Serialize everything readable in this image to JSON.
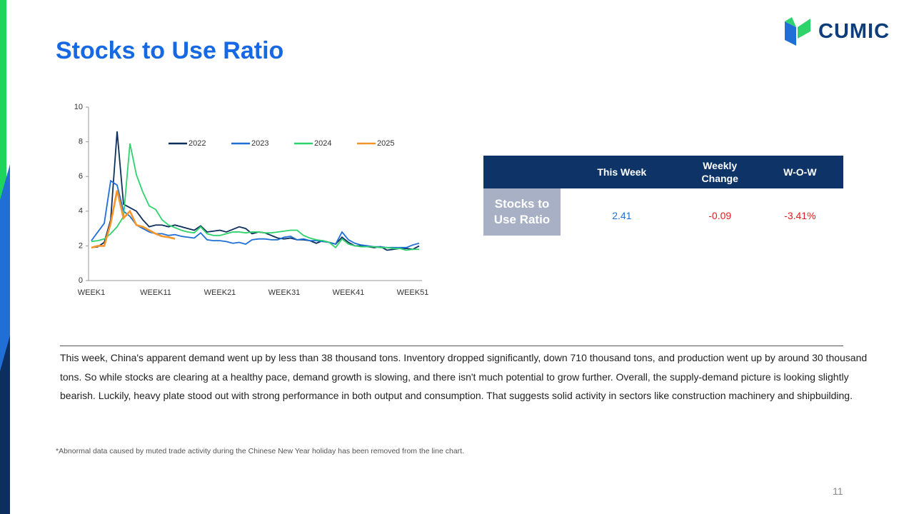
{
  "title": "Stocks to Use Ratio",
  "logo": "CUMIC",
  "chart_data": {
    "type": "line",
    "categories": [
      "WEEK1",
      null,
      null,
      null,
      null,
      null,
      null,
      null,
      null,
      null,
      "WEEK11",
      null,
      null,
      null,
      null,
      null,
      null,
      null,
      null,
      null,
      "WEEK21",
      null,
      null,
      null,
      null,
      null,
      null,
      null,
      null,
      null,
      "WEEK31",
      null,
      null,
      null,
      null,
      null,
      null,
      null,
      null,
      null,
      "WEEK41",
      null,
      null,
      null,
      null,
      null,
      null,
      null,
      null,
      null,
      "WEEK51",
      null
    ],
    "ylim": [
      0,
      10
    ],
    "yticks": [
      0,
      2,
      4,
      6,
      8,
      10
    ],
    "series": [
      {
        "name": "2022",
        "color": "#0d2f5e",
        "values": [
          1.9,
          1.95,
          2.2,
          3.5,
          8.6,
          4.4,
          4.2,
          4.0,
          3.5,
          3.1,
          3.2,
          3.2,
          3.1,
          3.2,
          3.1,
          3.0,
          2.9,
          3.15,
          2.8,
          2.85,
          2.9,
          2.8,
          2.95,
          3.1,
          3.0,
          2.7,
          2.8,
          2.75,
          2.6,
          2.45,
          2.4,
          2.45,
          2.35,
          2.35,
          2.3,
          2.15,
          2.3,
          2.2,
          2.1,
          2.5,
          2.2,
          2.0,
          2.0,
          1.95,
          1.9,
          1.95,
          1.75,
          1.8,
          1.85,
          1.85,
          1.8,
          2.0
        ]
      },
      {
        "name": "2023",
        "color": "#1f6fd6",
        "values": [
          2.3,
          2.8,
          3.3,
          5.75,
          5.5,
          4.0,
          3.7,
          3.2,
          3.0,
          2.8,
          2.7,
          2.7,
          2.6,
          2.65,
          2.55,
          2.5,
          2.45,
          2.75,
          2.35,
          2.3,
          2.3,
          2.25,
          2.15,
          2.2,
          2.1,
          2.35,
          2.4,
          2.4,
          2.35,
          2.35,
          2.5,
          2.55,
          2.35,
          2.4,
          2.3,
          2.3,
          2.25,
          2.2,
          2.1,
          2.8,
          2.35,
          2.15,
          2.05,
          2.0,
          1.95,
          1.95,
          1.9,
          1.9,
          1.9,
          1.9,
          2.05,
          2.15
        ]
      },
      {
        "name": "2024",
        "color": "#2ed36b",
        "values": [
          2.25,
          2.3,
          2.4,
          2.7,
          3.1,
          3.7,
          7.9,
          6.1,
          5.1,
          4.3,
          4.1,
          3.5,
          3.2,
          3.05,
          2.9,
          2.8,
          2.75,
          3.1,
          2.7,
          2.6,
          2.6,
          2.7,
          2.8,
          2.8,
          2.75,
          2.8,
          2.8,
          2.75,
          2.75,
          2.8,
          2.85,
          2.9,
          2.9,
          2.6,
          2.45,
          2.35,
          2.3,
          2.2,
          1.9,
          2.4,
          2.1,
          2.0,
          1.95,
          1.95,
          1.95,
          1.9,
          1.9,
          1.85,
          1.85,
          1.75,
          1.8,
          1.8
        ]
      },
      {
        "name": "2025",
        "color": "#f5962a",
        "values": [
          1.9,
          2.0,
          2.0,
          3.3,
          5.2,
          3.6,
          4.0,
          3.2,
          3.1,
          2.9,
          2.7,
          2.55,
          2.5,
          2.41,
          null,
          null,
          null,
          null,
          null,
          null,
          null,
          null,
          null,
          null,
          null,
          null,
          null,
          null,
          null,
          null,
          null,
          null,
          null,
          null,
          null,
          null,
          null,
          null,
          null,
          null,
          null,
          null,
          null,
          null,
          null,
          null,
          null,
          null,
          null,
          null,
          null,
          null
        ]
      }
    ]
  },
  "table": {
    "header": [
      "This Week",
      "Weekly Change",
      "W-O-W"
    ],
    "rows": [
      [
        "Stocks to Use Ratio",
        "2.41",
        "-0.09",
        "-3.41%"
      ]
    ]
  },
  "paragraph": "This week, China's apparent demand went up by less than  38 thousand tons. Inventory dropped significantly, down  710 thousand tons, and production went up by around 30 thousand tons. So while stocks are clearing at a healthy pace, demand growth is slowing, and there isn't much potential to grow further. Overall, the supply-demand picture is looking slightly bearish. Luckily, heavy plate stood out with strong performance in both output and consumption. That suggests solid activity in sectors like construction machinery and shipbuilding.",
  "footnote": "*Abnormal data caused by muted trade activity during the Chinese New Year holiday has been removed from the line chart.",
  "page_number": "11"
}
